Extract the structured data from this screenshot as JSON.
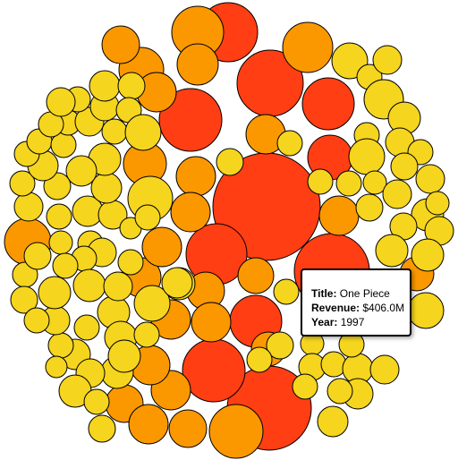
{
  "chart_data": {
    "type": "bubble",
    "layout": "packed-circles",
    "color_scale": {
      "low": "#f5d51e",
      "mid": "#fb9800",
      "high": "#ff3e14"
    },
    "tooltip": {
      "title_label": "Title:",
      "title_value": "One Piece",
      "revenue_label": "Revenue:",
      "revenue_value": "$406.0M",
      "year_label": "Year:",
      "year_value": "1997"
    }
  }
}
